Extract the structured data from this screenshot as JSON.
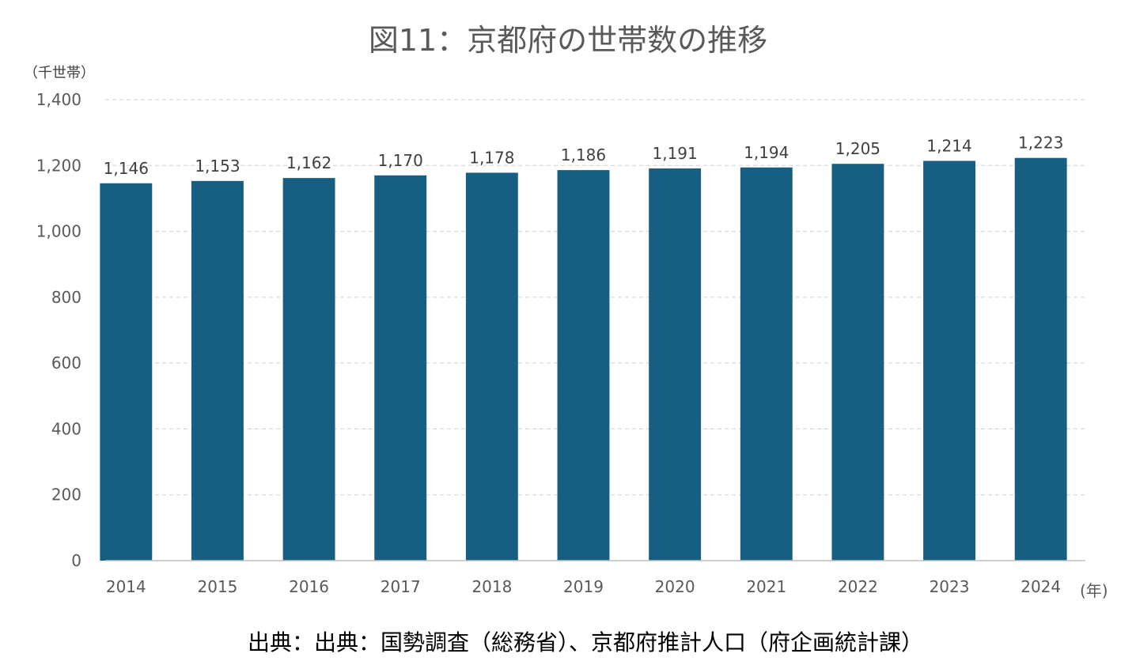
{
  "chart_data": {
    "type": "bar",
    "title": "図11：京都府の世帯数の推移",
    "ylabel": "（千世帯）",
    "xlabel": "(年)",
    "categories": [
      "2014",
      "2015",
      "2016",
      "2017",
      "2018",
      "2019",
      "2020",
      "2021",
      "2022",
      "2023",
      "2024"
    ],
    "values": [
      1146,
      1153,
      1162,
      1170,
      1178,
      1186,
      1191,
      1194,
      1205,
      1214,
      1223
    ],
    "value_labels": [
      "1,146",
      "1,153",
      "1,162",
      "1,170",
      "1,178",
      "1,186",
      "1,191",
      "1,194",
      "1,205",
      "1,214",
      "1,223"
    ],
    "yticks": [
      0,
      200,
      400,
      600,
      800,
      1000,
      1200,
      1400
    ],
    "ytick_labels": [
      "0",
      "200",
      "400",
      "600",
      "800",
      "1,000",
      "1,200",
      "1,400"
    ],
    "ylim": [
      0,
      1400
    ],
    "grid": true,
    "legend": "none",
    "bar_color": "#175F82",
    "source": "出典：出典：国勢調査（総務省）、京都府推計人口（府企画統計課）"
  }
}
